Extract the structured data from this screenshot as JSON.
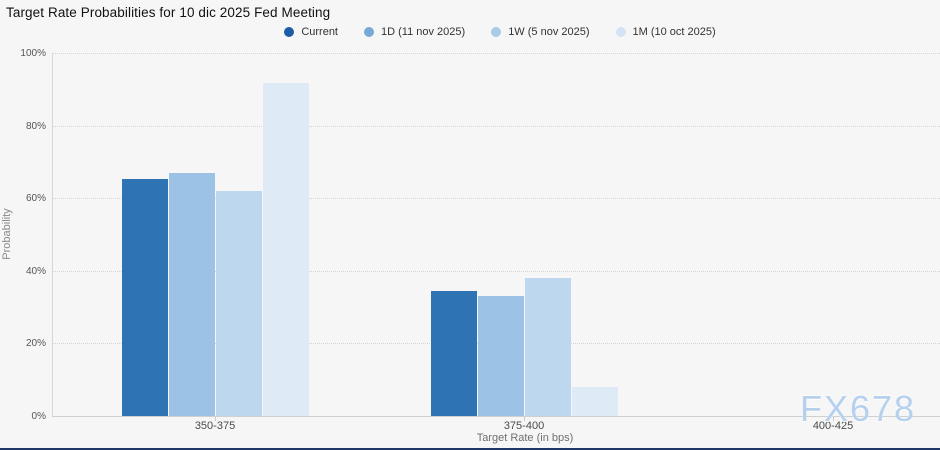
{
  "page": {
    "watermark": "FX678",
    "background_color": "#f6f6f6",
    "bottom_bar_color": "#1e3766"
  },
  "chart_data": {
    "type": "bar",
    "title": "Target Rate Probabilities for 10 dic 2025 Fed Meeting",
    "categories": [
      "350-375",
      "375-400",
      "400-425"
    ],
    "series": [
      {
        "name": "Current",
        "color": "#2e74b5",
        "marker_color": "#1e5ca6",
        "values": [
          65.3,
          34.5,
          0
        ]
      },
      {
        "name": "1D (11 nov 2025)",
        "color": "#9cc3e5",
        "marker_color": "#78a8d9",
        "values": [
          66.9,
          33.0,
          0
        ]
      },
      {
        "name": "1W (5 nov 2025)",
        "color": "#bdd7ee",
        "marker_color": "#a9cae9",
        "values": [
          62.0,
          38.0,
          0
        ]
      },
      {
        "name": "1M (10 oct 2025)",
        "color": "#deeaf6",
        "marker_color": "#d2e3f4",
        "values": [
          91.8,
          8.0,
          0
        ]
      }
    ],
    "xlabel": "Target Rate (in bps)",
    "ylabel": "Probability",
    "ylim": [
      0,
      100
    ],
    "yticks": [
      0,
      20,
      40,
      60,
      80,
      100
    ],
    "ytick_suffix": "%",
    "grid": "dotted horizontal",
    "legend_position": "top-center"
  }
}
